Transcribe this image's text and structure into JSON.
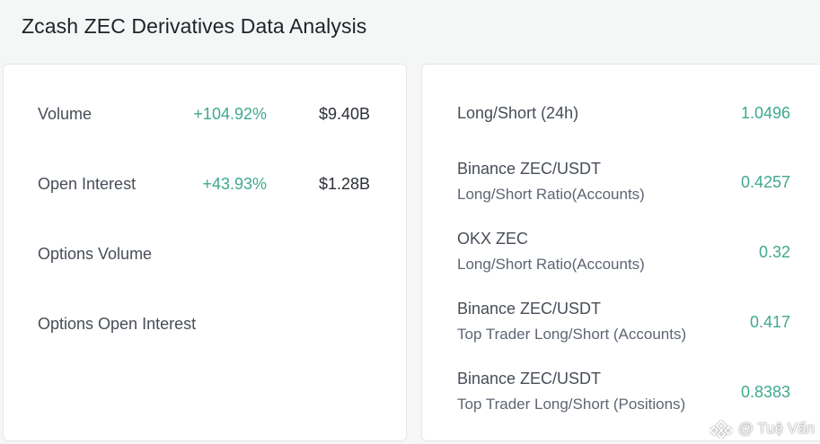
{
  "page": {
    "title": "Zcash ZEC Derivatives Data Analysis"
  },
  "left_panel": {
    "rows": [
      {
        "label": "Volume",
        "change": "+104.92%",
        "value": "$9.40B"
      },
      {
        "label": "Open Interest",
        "change": "+43.93%",
        "value": "$1.28B"
      },
      {
        "label": "Options Volume",
        "change": "",
        "value": ""
      },
      {
        "label": "Options Open Interest",
        "change": "",
        "value": ""
      }
    ]
  },
  "right_panel": {
    "rows": [
      {
        "line1": "Long/Short (24h)",
        "line2": "",
        "value": "1.0496"
      },
      {
        "line1": "Binance ZEC/USDT",
        "line2": "Long/Short Ratio(Accounts)",
        "value": "0.4257"
      },
      {
        "line1": "OKX ZEC",
        "line2": "Long/Short Ratio(Accounts)",
        "value": "0.32"
      },
      {
        "line1": "Binance ZEC/USDT",
        "line2": "Top Trader Long/Short (Accounts)",
        "value": "0.417"
      },
      {
        "line1": "Binance ZEC/USDT",
        "line2": "Top Trader Long/Short (Positions)",
        "value": "0.8383"
      }
    ]
  },
  "watermark": {
    "text": "@ Tuệ Vấn",
    "icon": "binance-square-logo-icon"
  },
  "colors": {
    "positive": "#3fa98d",
    "text": "#474d57",
    "background": "#f5f6f6",
    "card": "#ffffff"
  }
}
